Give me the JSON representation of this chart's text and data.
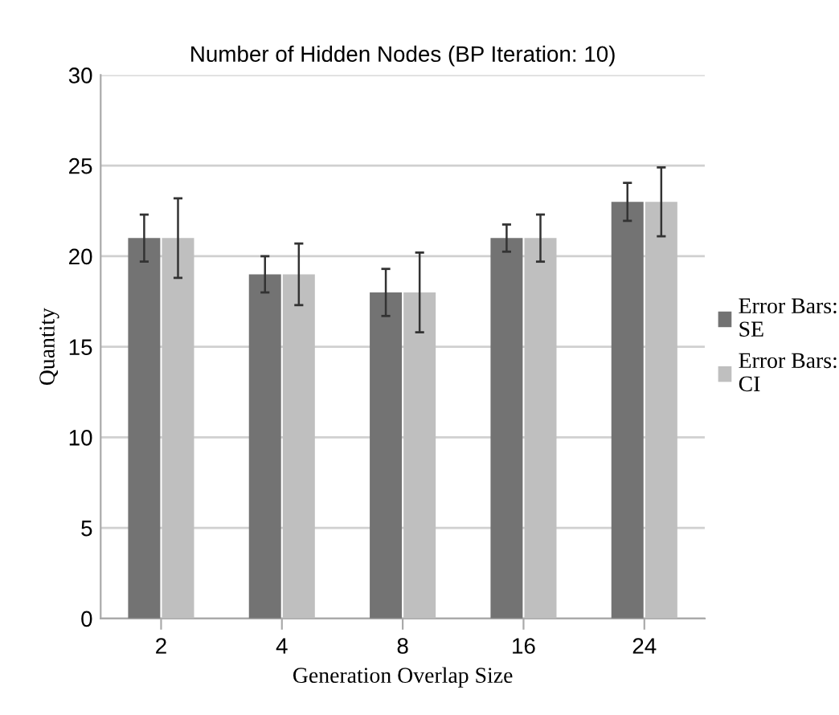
{
  "chart_data": {
    "type": "bar",
    "title": "Number of Hidden Nodes (BP Iteration: 10)",
    "xlabel": "Generation Overlap Size",
    "ylabel": "Quantity",
    "categories": [
      "2",
      "4",
      "8",
      "16",
      "24"
    ],
    "series": [
      {
        "name": "Error Bars: SE",
        "color": "#737373",
        "values": [
          21,
          19,
          18,
          21,
          23
        ],
        "errors": [
          1.3,
          1.0,
          1.3,
          0.75,
          1.05
        ]
      },
      {
        "name": "Error Bars: CI",
        "color": "#bfbfbf",
        "values": [
          21,
          19,
          18,
          21,
          23
        ],
        "errors": [
          2.2,
          1.7,
          2.2,
          1.3,
          1.9
        ]
      }
    ],
    "ylim": [
      0,
      30
    ],
    "yticks": [
      0,
      5,
      10,
      15,
      20,
      25,
      30
    ],
    "grid": "y",
    "legend": "right"
  }
}
